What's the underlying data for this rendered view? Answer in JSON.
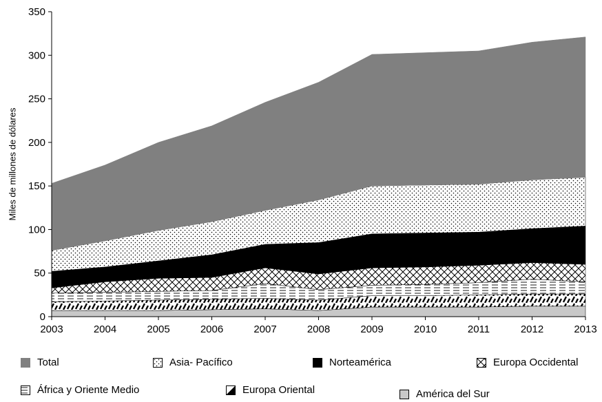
{
  "chart_data": {
    "type": "area",
    "stacked": true,
    "title": "",
    "xlabel": "",
    "ylabel": "Miles de millones de dólares",
    "ylim": [
      0,
      350
    ],
    "yticks": [
      0,
      50,
      100,
      150,
      200,
      250,
      300,
      350
    ],
    "x": [
      "2003",
      "2004",
      "2005",
      "2006",
      "2007",
      "2008",
      "2009",
      "2010",
      "2011",
      "2012",
      "2013"
    ],
    "series": [
      {
        "name": "América del Sur",
        "color": "#c8c8c8",
        "pattern": "solid-light-gray",
        "values": [
          7,
          7,
          7,
          8,
          9,
          7,
          11,
          11,
          11,
          12,
          12
        ]
      },
      {
        "name": "Europa Oriental",
        "color": "#000000",
        "pattern": "diagonal-dash-hatch",
        "values": [
          10,
          11,
          12,
          12,
          12,
          12,
          13,
          13,
          14,
          14,
          14
        ]
      },
      {
        "name": "África y Oriente Medio",
        "color": "#000000",
        "pattern": "horizontal-dash-lines",
        "values": [
          10,
          10,
          10,
          10,
          17,
          12,
          12,
          13,
          14,
          17,
          14
        ]
      },
      {
        "name": "Europa Occidental",
        "color": "#000000",
        "pattern": "cross-hatch",
        "values": [
          6,
          12,
          15,
          15,
          18,
          18,
          20,
          20,
          20,
          19,
          20
        ]
      },
      {
        "name": "Norteamérica",
        "color": "#000000",
        "pattern": "solid-black",
        "values": [
          19,
          17,
          20,
          26,
          27,
          36,
          39,
          39,
          38,
          39,
          44
        ]
      },
      {
        "name": "Asia- Pacífico",
        "color": "#ffffff",
        "pattern": "dotted",
        "values": [
          24,
          30,
          35,
          38,
          39,
          49,
          55,
          55,
          55,
          56,
          56
        ]
      },
      {
        "name": "Total",
        "color": "#808080",
        "pattern": "solid-dark-gray",
        "values": [
          77,
          87,
          101,
          110,
          124,
          135,
          151,
          152,
          153,
          158,
          161
        ]
      }
    ],
    "legend": {
      "placement": "bottom",
      "items": [
        "Total",
        "Asia- Pacífico",
        "Norteamérica",
        "Europa Occidental",
        "África y Oriente Medio",
        "Europa Oriental",
        "América del Sur"
      ]
    },
    "grid": false
  }
}
